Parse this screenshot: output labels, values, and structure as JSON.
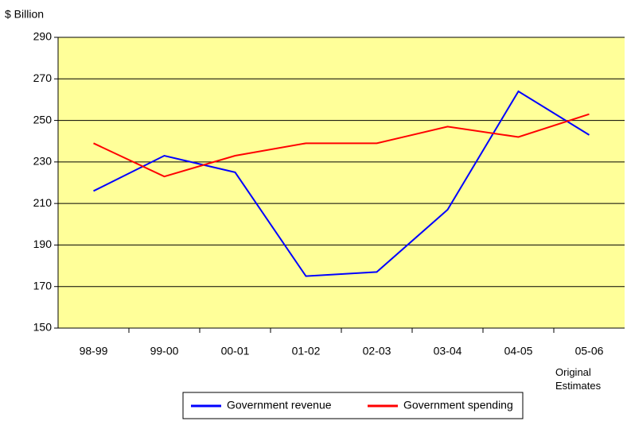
{
  "chart_data": {
    "type": "line",
    "y_axis_label": "$ Billion",
    "categories": [
      "98-99",
      "99-00",
      "00-01",
      "01-02",
      "02-03",
      "03-04",
      "04-05",
      "05-06"
    ],
    "annotation": "Original Estimates",
    "series": [
      {
        "name": "Government revenue",
        "color": "#0000ff",
        "values": [
          216,
          233,
          225,
          175,
          177,
          207,
          264,
          243
        ]
      },
      {
        "name": "Government spending",
        "color": "#ff0000",
        "values": [
          239,
          223,
          233,
          239,
          239,
          247,
          242,
          253
        ]
      }
    ],
    "ylim": [
      150,
      290
    ],
    "yticks": [
      150,
      170,
      190,
      210,
      230,
      250,
      270,
      290
    ],
    "grid": true,
    "plot_background": "#ffff99",
    "legend": "bottom"
  }
}
